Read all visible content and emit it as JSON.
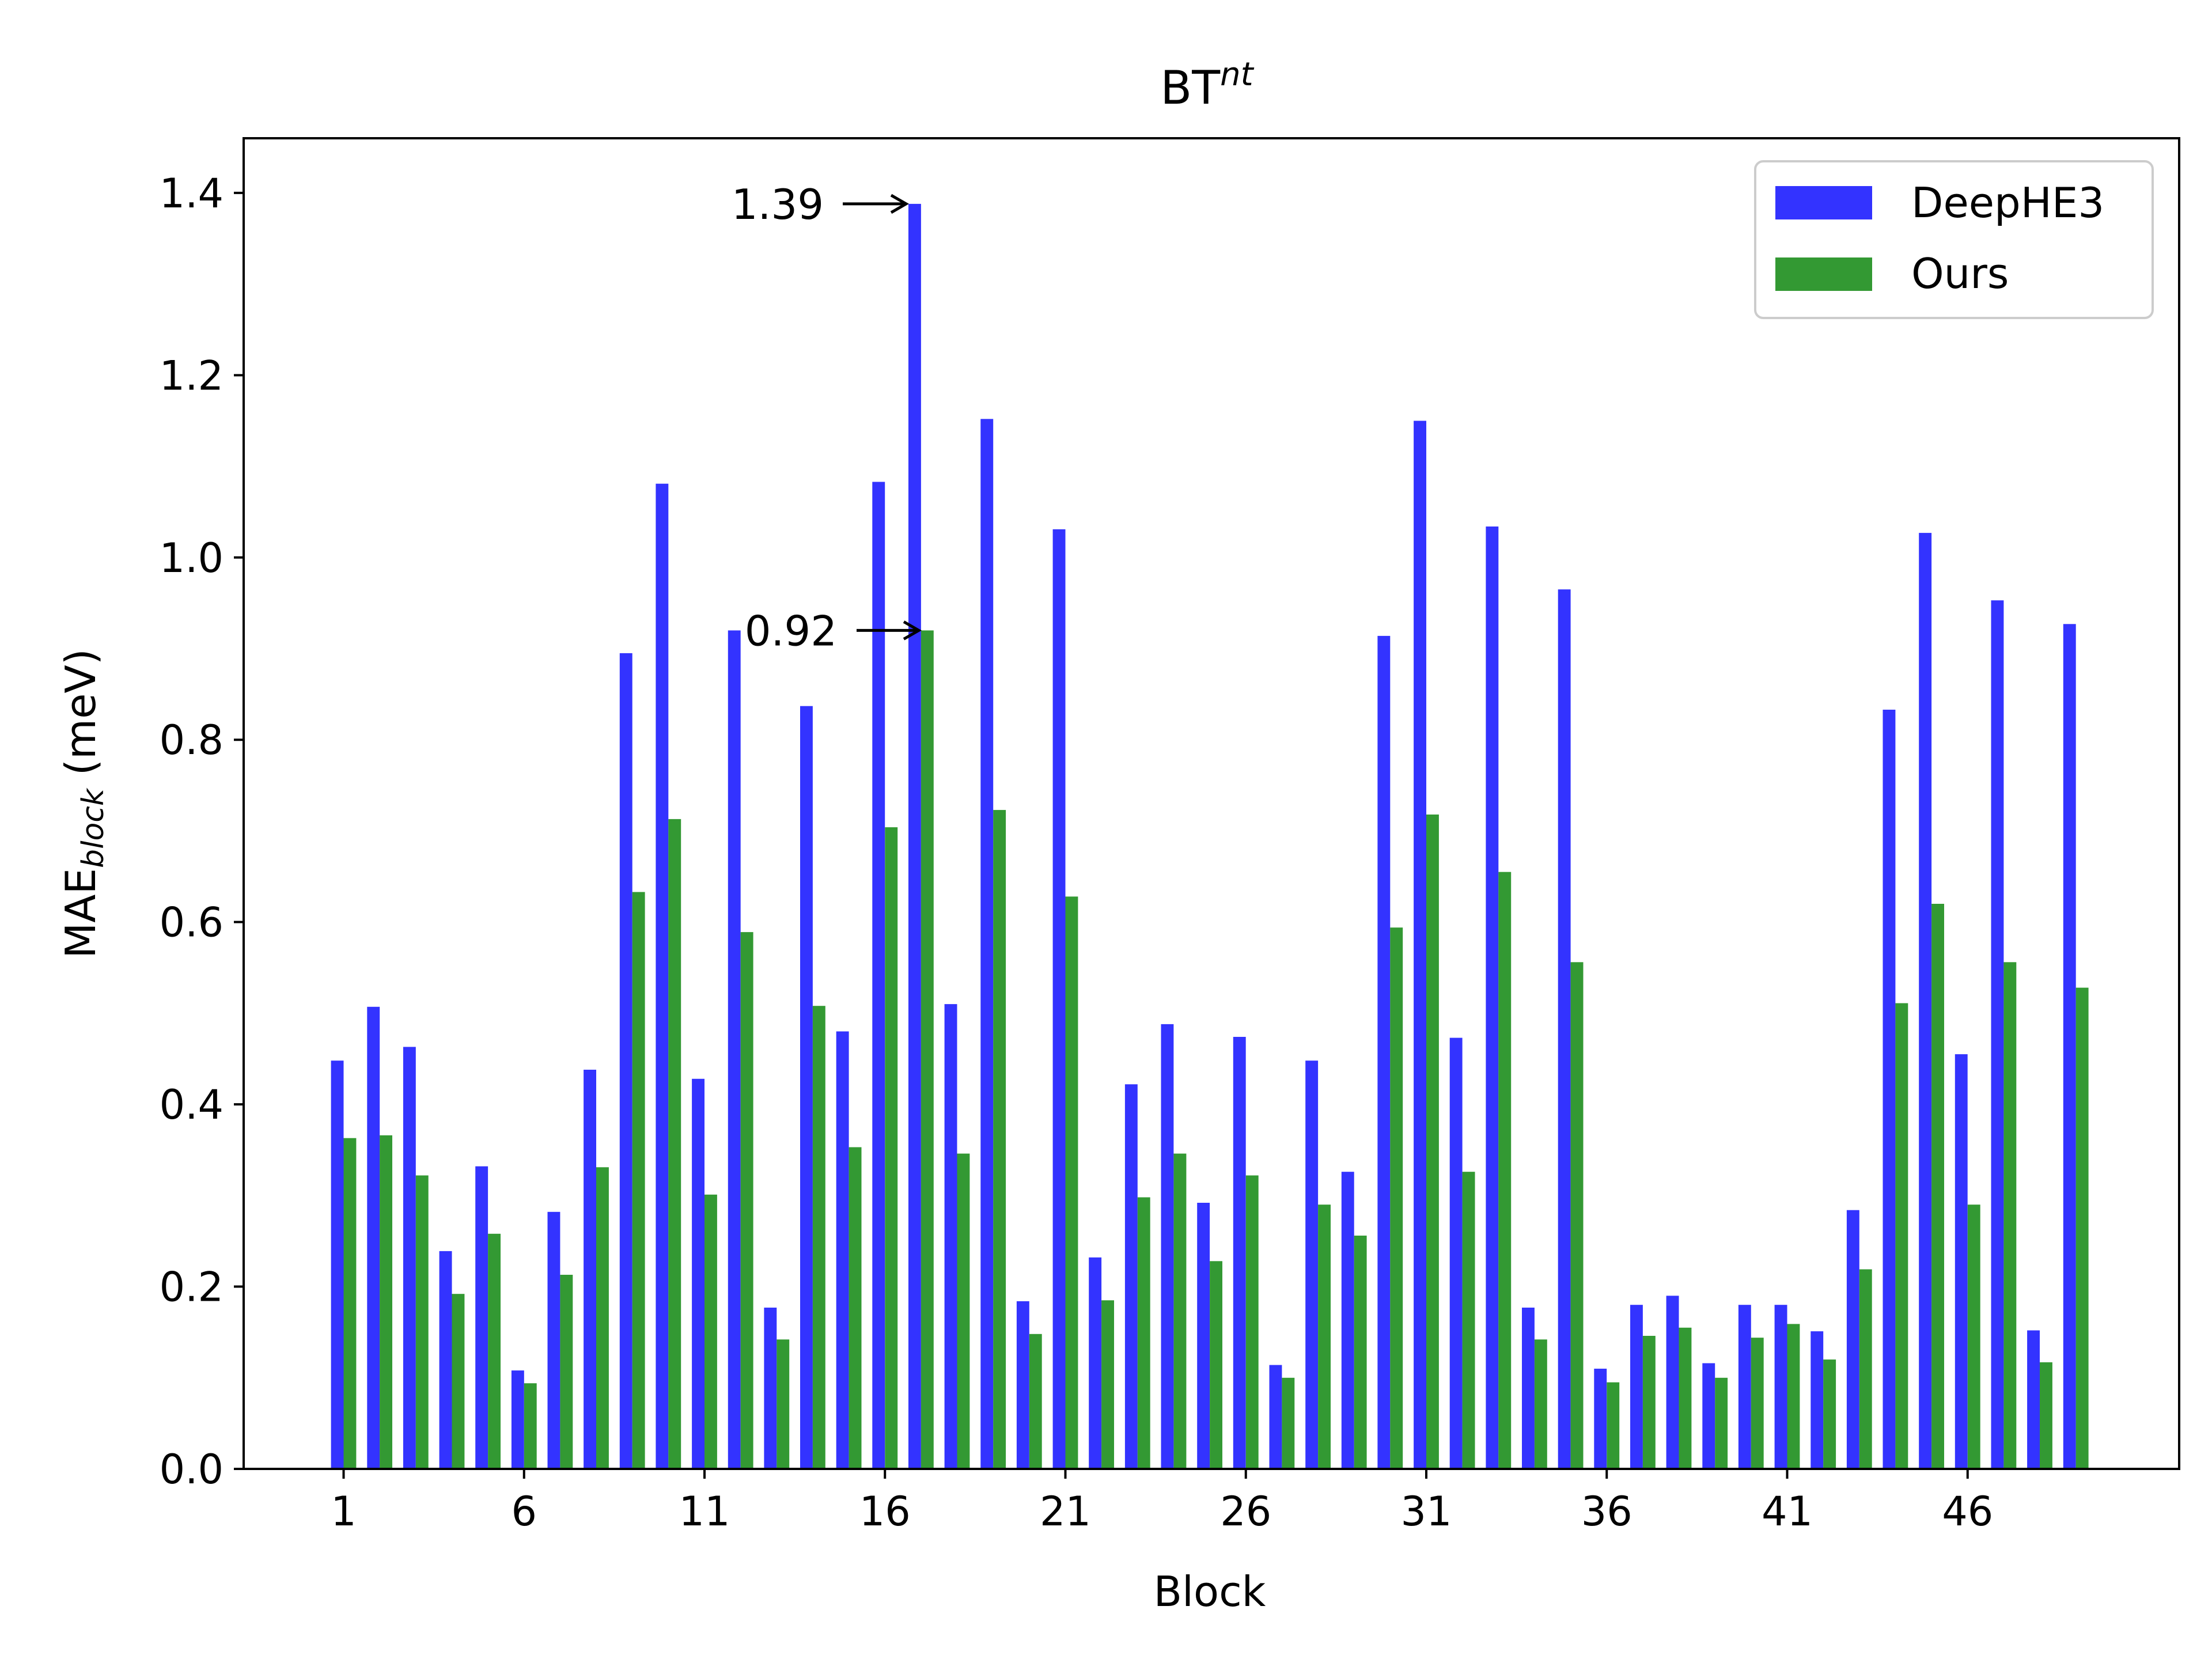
{
  "chart_data": {
    "type": "bar",
    "title_main": "BT",
    "title_sup": "nt",
    "xlabel": "Block",
    "ylabel_main": "MAE",
    "ylabel_sub": "block",
    "ylabel_unit": " (meV)",
    "ylim": [
      0,
      1.46
    ],
    "yticks": [
      "0.0",
      "0.2",
      "0.4",
      "0.6",
      "0.8",
      "1.0",
      "1.2",
      "1.4"
    ],
    "xticks": [
      "1",
      "6",
      "11",
      "16",
      "21",
      "26",
      "31",
      "36",
      "41",
      "46"
    ],
    "legend_position": "top-right",
    "categories": [
      1,
      2,
      3,
      4,
      5,
      6,
      7,
      8,
      9,
      10,
      11,
      12,
      13,
      14,
      15,
      16,
      17,
      18,
      19,
      20,
      21,
      22,
      23,
      24,
      25,
      26,
      27,
      28,
      29,
      30,
      31,
      32,
      33,
      34,
      35,
      36,
      37,
      38,
      39,
      40,
      41,
      42,
      43,
      44,
      45,
      46,
      47,
      48,
      49
    ],
    "series": [
      {
        "name": "DeepHE3",
        "color": "#3333ff",
        "values": [
          0.448,
          0.507,
          0.463,
          0.239,
          0.332,
          0.108,
          0.282,
          0.438,
          0.895,
          1.081,
          0.428,
          0.92,
          0.177,
          0.837,
          0.48,
          1.083,
          1.388,
          0.51,
          1.152,
          0.184,
          1.031,
          0.232,
          0.422,
          0.488,
          0.292,
          0.474,
          0.114,
          0.448,
          0.326,
          0.914,
          1.15,
          0.473,
          1.034,
          0.177,
          0.965,
          0.11,
          0.18,
          0.19,
          0.116,
          0.18,
          0.18,
          0.151,
          0.284,
          0.833,
          1.027,
          0.455,
          0.953,
          0.152,
          0.927
        ]
      },
      {
        "name": "Ours",
        "color": "#339933",
        "values": [
          0.363,
          0.366,
          0.322,
          0.192,
          0.258,
          0.094,
          0.213,
          0.331,
          0.633,
          0.713,
          0.301,
          0.589,
          0.142,
          0.508,
          0.353,
          0.704,
          0.92,
          0.346,
          0.723,
          0.148,
          0.628,
          0.185,
          0.298,
          0.346,
          0.228,
          0.322,
          0.1,
          0.29,
          0.256,
          0.594,
          0.718,
          0.326,
          0.655,
          0.142,
          0.556,
          0.095,
          0.146,
          0.155,
          0.1,
          0.144,
          0.159,
          0.12,
          0.219,
          0.511,
          0.62,
          0.29,
          0.556,
          0.117,
          0.528
        ]
      }
    ],
    "annotations": [
      {
        "text": "1.39",
        "x": 17,
        "y": 1.388
      },
      {
        "text": "0.92",
        "x": 17,
        "y": 0.92
      }
    ]
  }
}
